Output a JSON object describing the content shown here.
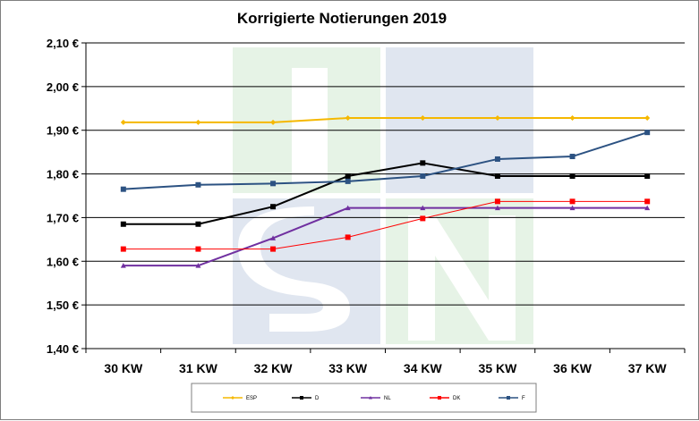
{
  "chart_data": {
    "type": "line",
    "title": "Korrigierte Notierungen 2019",
    "categories": [
      "30 KW",
      "31 KW",
      "32 KW",
      "33 KW",
      "34 KW",
      "35 KW",
      "36 KW",
      "37 KW"
    ],
    "ylim": [
      1.4,
      2.1
    ],
    "yticks": [
      2.1,
      2.0,
      1.9,
      1.8,
      1.7,
      1.6,
      1.5,
      1.4
    ],
    "ytick_labels": [
      "2,10 €",
      "2,00 €",
      "1,90 €",
      "1,80 €",
      "1,70 €",
      "1,60 €",
      "1,50 €",
      "1,40 €"
    ],
    "grid": "horizontal",
    "legend_position": "bottom",
    "series": [
      {
        "name": "ESP",
        "color": "#f5b800",
        "marker": "diamond",
        "values": [
          1.918,
          1.918,
          1.918,
          1.928,
          1.928,
          1.928,
          1.928,
          1.928
        ]
      },
      {
        "name": "D",
        "color": "#000000",
        "marker": "square",
        "values": [
          1.685,
          1.685,
          1.725,
          1.795,
          1.825,
          1.795,
          1.795,
          1.795
        ]
      },
      {
        "name": "NL",
        "color": "#7030a0",
        "marker": "triangle",
        "values": [
          1.59,
          1.59,
          1.653,
          1.722,
          1.722,
          1.722,
          1.722,
          1.722
        ]
      },
      {
        "name": "DK",
        "color": "#ff0000",
        "marker": "square",
        "values": [
          1.628,
          1.628,
          1.628,
          1.655,
          1.698,
          1.737,
          1.737,
          1.737
        ]
      },
      {
        "name": "F",
        "color": "#2c5282",
        "marker": "square",
        "values": [
          1.765,
          1.775,
          1.778,
          1.783,
          1.795,
          1.834,
          1.84,
          1.895
        ]
      }
    ]
  }
}
